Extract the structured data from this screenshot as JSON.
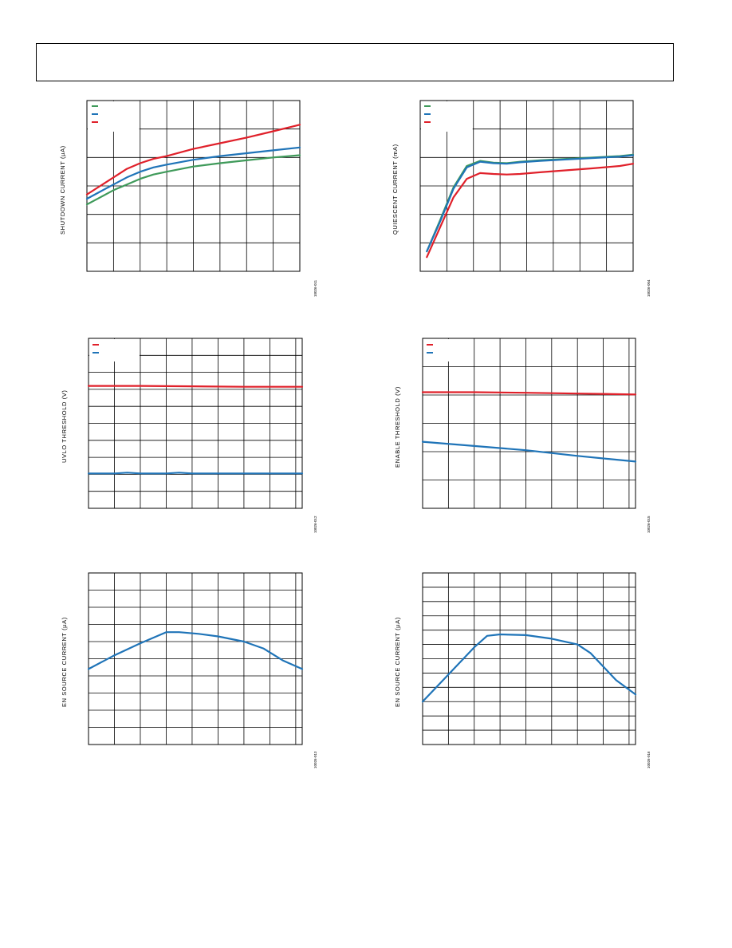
{
  "colors": {
    "green": "#3f9a5a",
    "blue": "#1f74b8",
    "red": "#e0202a"
  },
  "chart_data": [
    {
      "type": "line",
      "ylabel": "SHUTDOWN CURRENT (µA)",
      "fig_id": "10026-011",
      "grid": true,
      "legend_placement": "top-left",
      "legend_colors": [
        "green",
        "blue",
        "red"
      ],
      "xlim": [
        0,
        8
      ],
      "ylim": [
        0,
        6
      ],
      "series": [
        {
          "color": "green",
          "x": [
            0,
            0.5,
            1,
            1.5,
            2,
            2.5,
            3,
            4,
            5,
            6,
            7,
            8
          ],
          "y": [
            2.35,
            2.6,
            2.85,
            3.05,
            3.25,
            3.4,
            3.5,
            3.68,
            3.8,
            3.9,
            4.0,
            4.08
          ]
        },
        {
          "color": "blue",
          "x": [
            0,
            0.5,
            1,
            1.5,
            2,
            2.5,
            3,
            4,
            5,
            6,
            7,
            8
          ],
          "y": [
            2.55,
            2.8,
            3.05,
            3.3,
            3.5,
            3.65,
            3.75,
            3.92,
            4.05,
            4.15,
            4.25,
            4.35
          ]
        },
        {
          "color": "red",
          "x": [
            0,
            0.5,
            1,
            1.5,
            2,
            2.5,
            3,
            4,
            5,
            6,
            7,
            8
          ],
          "y": [
            2.7,
            3.0,
            3.3,
            3.6,
            3.8,
            3.95,
            4.05,
            4.3,
            4.5,
            4.7,
            4.92,
            5.15
          ]
        }
      ]
    },
    {
      "type": "line",
      "ylabel": "QUIESCENT CURRENT (mA)",
      "fig_id": "10026-004",
      "grid": true,
      "legend_placement": "top-left",
      "legend_colors": [
        "green",
        "blue",
        "red"
      ],
      "xlim": [
        0,
        8
      ],
      "ylim": [
        0,
        6
      ],
      "series": [
        {
          "color": "green",
          "x": [
            0.25,
            0.75,
            1.25,
            1.75,
            2.25,
            2.75,
            3.25,
            3.75,
            4.5,
            5.5,
            6.5,
            7.5,
            8
          ],
          "y": [
            0.7,
            1.8,
            2.95,
            3.7,
            3.88,
            3.82,
            3.8,
            3.85,
            3.9,
            3.95,
            4.0,
            4.05,
            4.1
          ]
        },
        {
          "color": "blue",
          "x": [
            0.25,
            0.75,
            1.25,
            1.75,
            2.25,
            2.75,
            3.25,
            3.75,
            4.5,
            5.5,
            6.5,
            7.5,
            8
          ],
          "y": [
            0.7,
            1.75,
            2.9,
            3.65,
            3.85,
            3.8,
            3.78,
            3.83,
            3.88,
            3.93,
            3.98,
            4.03,
            4.08
          ]
        },
        {
          "color": "red",
          "x": [
            0.25,
            0.75,
            1.25,
            1.75,
            2.25,
            2.75,
            3.25,
            3.75,
            4.5,
            5.5,
            6.5,
            7.5,
            8
          ],
          "y": [
            0.5,
            1.55,
            2.6,
            3.25,
            3.45,
            3.42,
            3.4,
            3.42,
            3.48,
            3.55,
            3.62,
            3.7,
            3.78
          ]
        }
      ]
    },
    {
      "type": "line",
      "ylabel": "UVLO THRESHOLD (V)",
      "fig_id": "10026-012",
      "grid": true,
      "legend_placement": "top-left",
      "legend_colors": [
        "red",
        "blue"
      ],
      "xlim": [
        0,
        8.25
      ],
      "ylim": [
        0,
        10
      ],
      "series": [
        {
          "color": "red",
          "x": [
            0,
            2,
            4,
            6,
            8.25
          ],
          "y": [
            7.2,
            7.2,
            7.18,
            7.15,
            7.15
          ]
        },
        {
          "color": "blue",
          "x": [
            0,
            1,
            1.5,
            2,
            3,
            3.5,
            4,
            5,
            8.25
          ],
          "y": [
            2.05,
            2.05,
            2.1,
            2.05,
            2.05,
            2.1,
            2.05,
            2.05,
            2.05
          ]
        }
      ]
    },
    {
      "type": "line",
      "ylabel": "ENABLE THRESHOLD (V)",
      "fig_id": "10026-015",
      "grid": true,
      "legend_placement": "top-left",
      "legend_colors": [
        "red",
        "blue"
      ],
      "xlim": [
        0,
        8.25
      ],
      "ylim": [
        0,
        6
      ],
      "series": [
        {
          "color": "red",
          "x": [
            0,
            2,
            4,
            6,
            8.25
          ],
          "y": [
            4.1,
            4.1,
            4.08,
            4.05,
            4.02
          ]
        },
        {
          "color": "blue",
          "x": [
            0,
            2,
            4,
            6,
            8.25
          ],
          "y": [
            2.35,
            2.2,
            2.05,
            1.85,
            1.65
          ]
        }
      ]
    },
    {
      "type": "line",
      "ylabel": "EN SOURCE CURRENT (µA)",
      "fig_id": "10026-013",
      "grid": true,
      "legend_placement": "none",
      "xlim": [
        0,
        8.25
      ],
      "ylim": [
        0,
        10
      ],
      "series": [
        {
          "color": "blue",
          "x": [
            0,
            1,
            2,
            3,
            3.5,
            4.25,
            5,
            6,
            6.75,
            7.5,
            8.25
          ],
          "y": [
            4.4,
            5.2,
            5.9,
            6.55,
            6.55,
            6.45,
            6.3,
            6.0,
            5.6,
            4.9,
            4.4
          ]
        }
      ]
    },
    {
      "type": "line",
      "ylabel": "EN SOURCE CURRENT (µA)",
      "fig_id": "10026-016",
      "grid": true,
      "legend_placement": "none",
      "xlim": [
        0,
        8.25
      ],
      "ylim": [
        0,
        12
      ],
      "series": [
        {
          "color": "blue",
          "x": [
            0,
            1,
            2,
            2.5,
            3,
            4,
            5,
            6,
            6.5,
            7.5,
            8.25
          ],
          "y": [
            3.0,
            4.9,
            6.8,
            7.6,
            7.7,
            7.65,
            7.4,
            7.0,
            6.4,
            4.5,
            3.5
          ]
        }
      ]
    }
  ]
}
